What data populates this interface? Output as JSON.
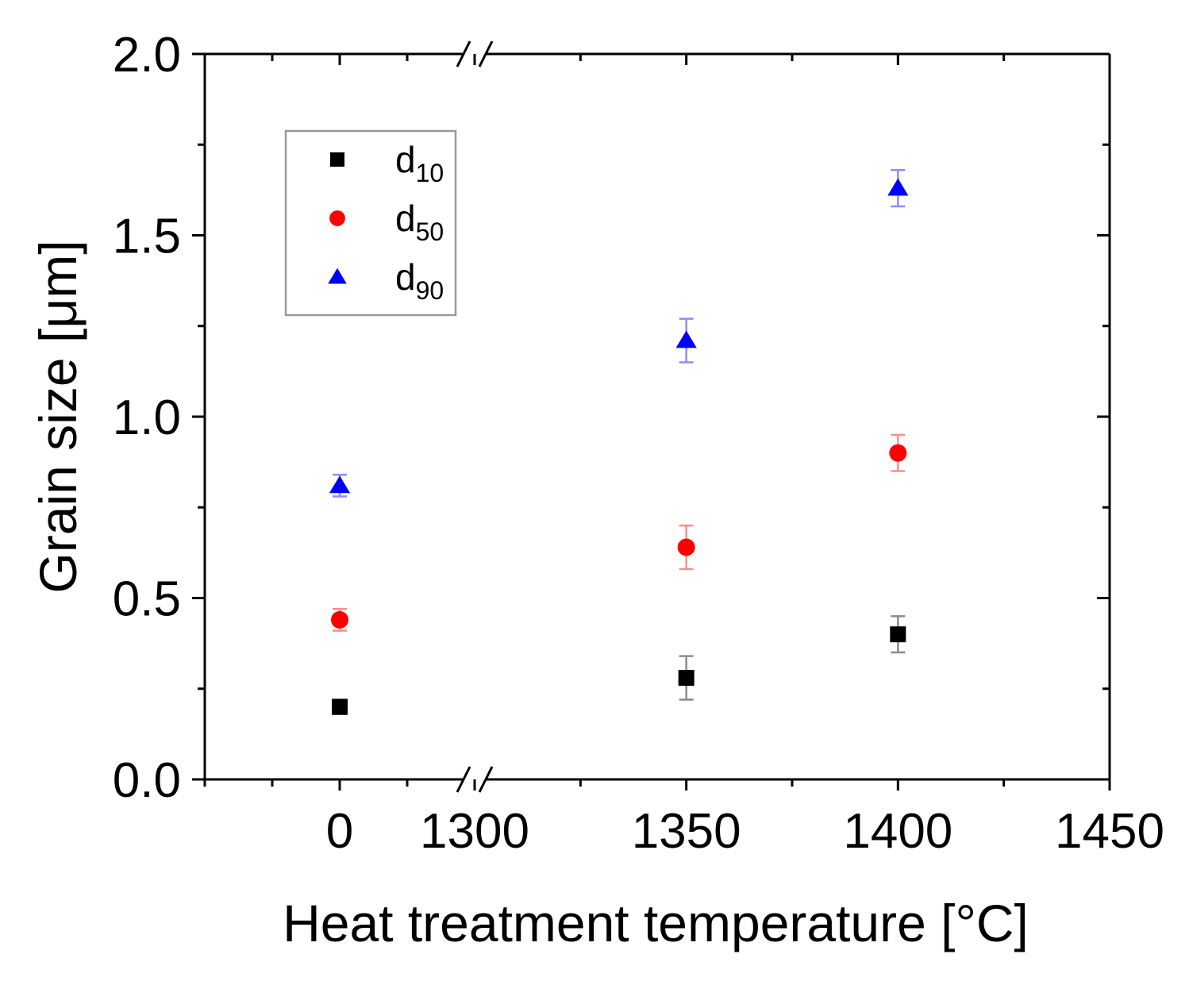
{
  "chart_data": {
    "type": "scatter",
    "title": "",
    "xlabel": "Heat treatment temperature [°C]",
    "ylabel": "Grain size [μm]",
    "ylim": [
      0,
      2.0
    ],
    "x_axis": {
      "broken": true,
      "segments": [
        {
          "range": [
            -25,
            25
          ],
          "ticks": [
            0
          ],
          "tick_labels": [
            "0"
          ]
        },
        {
          "range": [
            1300,
            1450
          ],
          "ticks": [
            1300,
            1350,
            1400,
            1450
          ],
          "tick_labels": [
            "1300",
            "1350",
            "1400",
            "1450"
          ]
        }
      ]
    },
    "y_ticks": [
      0.0,
      0.5,
      1.0,
      1.5,
      2.0
    ],
    "y_tick_labels": [
      "0.0",
      "0.5",
      "1.0",
      "1.5",
      "2.0"
    ],
    "grid": false,
    "legend": {
      "position": "top-left"
    },
    "series": [
      {
        "name": "d10",
        "label_main": "d",
        "label_sub": "10",
        "color": "#000000",
        "marker": "square",
        "x": [
          0,
          1350,
          1400
        ],
        "y": [
          0.2,
          0.28,
          0.4
        ],
        "yerr": [
          0.02,
          0.06,
          0.05
        ]
      },
      {
        "name": "d50",
        "label_main": "d",
        "label_sub": "50",
        "color": "#ff0000",
        "marker": "circle",
        "x": [
          0,
          1350,
          1400
        ],
        "y": [
          0.44,
          0.64,
          0.9
        ],
        "yerr": [
          0.03,
          0.06,
          0.05
        ]
      },
      {
        "name": "d90",
        "label_main": "d",
        "label_sub": "90",
        "color": "#0000ff",
        "marker": "triangle",
        "x": [
          0,
          1350,
          1400
        ],
        "y": [
          0.81,
          1.21,
          1.63
        ],
        "yerr": [
          0.03,
          0.06,
          0.05
        ]
      }
    ]
  }
}
